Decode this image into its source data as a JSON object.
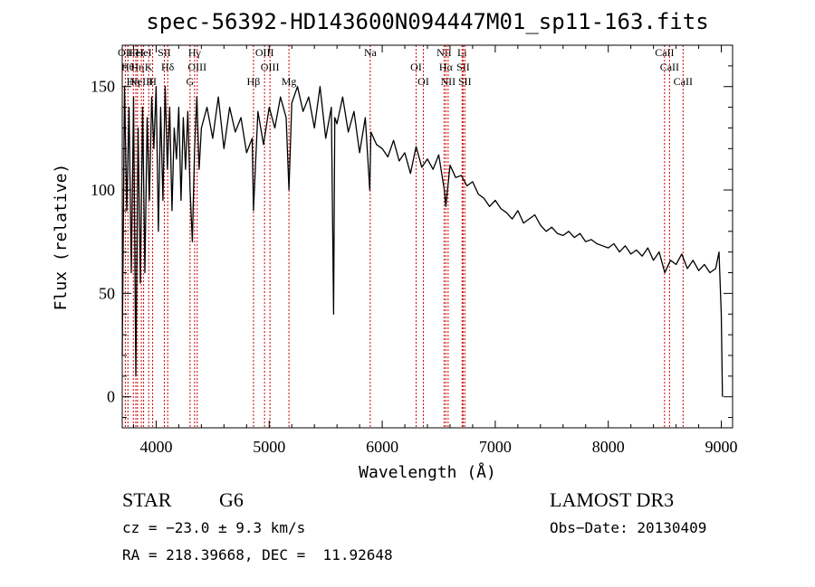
{
  "chart_data": {
    "type": "line",
    "title": "spec-56392-HD143600N094447M01_sp11-163.fits",
    "xlabel": "Wavelength (Å)",
    "ylabel": "Flux (relative)",
    "xlim": [
      3700,
      9100
    ],
    "ylim": [
      -15,
      170
    ],
    "xticks": [
      4000,
      5000,
      6000,
      7000,
      8000,
      9000
    ],
    "yticks": [
      0,
      50,
      100,
      150
    ],
    "series": [
      {
        "name": "flux",
        "x": [
          3700,
          3720,
          3740,
          3760,
          3780,
          3800,
          3820,
          3840,
          3860,
          3880,
          3900,
          3920,
          3940,
          3960,
          3980,
          4000,
          4020,
          4040,
          4060,
          4080,
          4100,
          4120,
          4140,
          4160,
          4180,
          4200,
          4220,
          4240,
          4260,
          4280,
          4300,
          4320,
          4340,
          4360,
          4380,
          4400,
          4450,
          4500,
          4550,
          4600,
          4650,
          4700,
          4750,
          4800,
          4850,
          4861,
          4900,
          4950,
          5000,
          5050,
          5100,
          5150,
          5175,
          5200,
          5250,
          5300,
          5350,
          5400,
          5450,
          5500,
          5550,
          5570,
          5580,
          5600,
          5650,
          5700,
          5750,
          5800,
          5850,
          5890,
          5900,
          5950,
          6000,
          6050,
          6100,
          6150,
          6200,
          6250,
          6300,
          6350,
          6400,
          6450,
          6500,
          6550,
          6563,
          6600,
          6650,
          6700,
          6750,
          6800,
          6850,
          6900,
          6950,
          7000,
          7050,
          7100,
          7150,
          7200,
          7250,
          7300,
          7350,
          7400,
          7450,
          7500,
          7550,
          7600,
          7650,
          7700,
          7750,
          7800,
          7850,
          7900,
          7950,
          8000,
          8050,
          8100,
          8150,
          8200,
          8250,
          8300,
          8350,
          8400,
          8450,
          8500,
          8550,
          8600,
          8650,
          8700,
          8750,
          8800,
          8850,
          8900,
          8950,
          8980,
          9000,
          9010
        ],
        "values": [
          20,
          150,
          90,
          140,
          60,
          145,
          10,
          130,
          55,
          140,
          60,
          135,
          95,
          145,
          120,
          150,
          80,
          140,
          95,
          150,
          110,
          140,
          90,
          130,
          115,
          140,
          95,
          135,
          110,
          138,
          100,
          75,
          120,
          145,
          110,
          130,
          140,
          125,
          145,
          120,
          140,
          128,
          135,
          118,
          125,
          90,
          138,
          122,
          140,
          130,
          145,
          135,
          100,
          142,
          150,
          138,
          145,
          130,
          150,
          125,
          140,
          40,
          135,
          132,
          145,
          128,
          138,
          118,
          135,
          100,
          128,
          122,
          120,
          116,
          124,
          114,
          118,
          108,
          121,
          111,
          115,
          110,
          117,
          100,
          92,
          112,
          106,
          107,
          102,
          104,
          98,
          96,
          92,
          95,
          91,
          89,
          86,
          90,
          84,
          86,
          88,
          83,
          80,
          82,
          79,
          78,
          80,
          77,
          79,
          75,
          76,
          74,
          73,
          72,
          74,
          70,
          73,
          69,
          71,
          68,
          72,
          66,
          70,
          60,
          66,
          64,
          69,
          62,
          66,
          61,
          64,
          60,
          62,
          70,
          40,
          0
        ]
      }
    ],
    "spectral_lines": [
      {
        "wavelength": 3727,
        "label": "OII"
      },
      {
        "wavelength": 3750,
        "label": "Hθ"
      },
      {
        "wavelength": 3798,
        "label": "Hη"
      },
      {
        "wavelength": 3820,
        "label": "HeI"
      },
      {
        "wavelength": 3835,
        "label": "Hη"
      },
      {
        "wavelength": 3869,
        "label": "NeIII"
      },
      {
        "wavelength": 3889,
        "label": "HeI"
      },
      {
        "wavelength": 3934,
        "label": "K"
      },
      {
        "wavelength": 3969,
        "label": "H"
      },
      {
        "wavelength": 4072,
        "label": "SII"
      },
      {
        "wavelength": 4102,
        "label": "Hδ"
      },
      {
        "wavelength": 4300,
        "label": "G"
      },
      {
        "wavelength": 4340,
        "label": "Hγ"
      },
      {
        "wavelength": 4363,
        "label": "OIII"
      },
      {
        "wavelength": 4861,
        "label": "Hβ"
      },
      {
        "wavelength": 4959,
        "label": "OIII"
      },
      {
        "wavelength": 5007,
        "label": "OIII"
      },
      {
        "wavelength": 5175,
        "label": "Mg"
      },
      {
        "wavelength": 5894,
        "label": "Na"
      },
      {
        "wavelength": 6300,
        "label": "OI"
      },
      {
        "wavelength": 6364,
        "label": "OI"
      },
      {
        "wavelength": 6548,
        "label": "NII"
      },
      {
        "wavelength": 6563,
        "label": "Hα"
      },
      {
        "wavelength": 6583,
        "label": "NII"
      },
      {
        "wavelength": 6707,
        "label": "Li"
      },
      {
        "wavelength": 6716,
        "label": "SII"
      },
      {
        "wavelength": 6731,
        "label": "SII"
      },
      {
        "wavelength": 8498,
        "label": "CaII"
      },
      {
        "wavelength": 8542,
        "label": "CaII"
      },
      {
        "wavelength": 8662,
        "label": "CaII"
      }
    ]
  },
  "info": {
    "class": "STAR",
    "subclass": "G6",
    "survey": "LAMOST DR3",
    "cz": "cz = −23.0 ± 9.3 km/s",
    "obs_date": "Obs−Date: 20130409",
    "coords": "RA = 218.39668, DEC =  11.92648"
  },
  "colors": {
    "line_markers": "#cc0000",
    "spectrum": "#000000",
    "axes": "#000000"
  }
}
